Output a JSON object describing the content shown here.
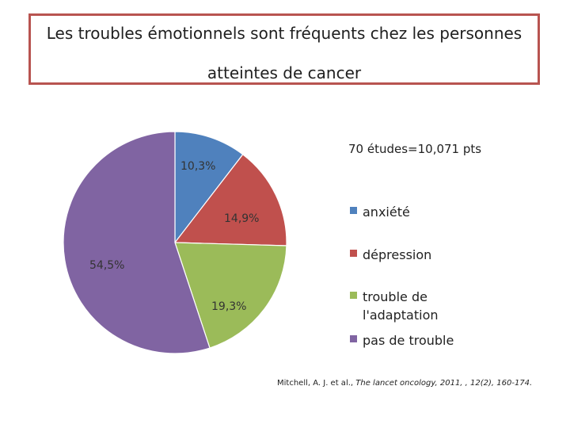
{
  "title": {
    "line1": "Les troubles émotionnels sont fréquents chez les personnes",
    "line2": "atteintes de cancer"
  },
  "chart_data": {
    "type": "pie",
    "note": "70 études=10,071 pts",
    "series": [
      {
        "name": "anxiété",
        "value": 10.3,
        "label": "10,3%",
        "color": "#4f81bd"
      },
      {
        "name": "dépression",
        "value": 14.9,
        "label": "14,9%",
        "color": "#c0504d"
      },
      {
        "name": "trouble de l'adaptation",
        "value": 19.3,
        "label": "19,3%",
        "color": "#9bbb59"
      },
      {
        "name": "pas de trouble",
        "value": 54.5,
        "label": "54,5%",
        "color": "#8064a2"
      }
    ],
    "legend_position": "right"
  },
  "citation": {
    "authors": "Mitchell, A. J. et al., ",
    "journal": "The lancet oncology, 2011, , 12(2), 160-174."
  }
}
